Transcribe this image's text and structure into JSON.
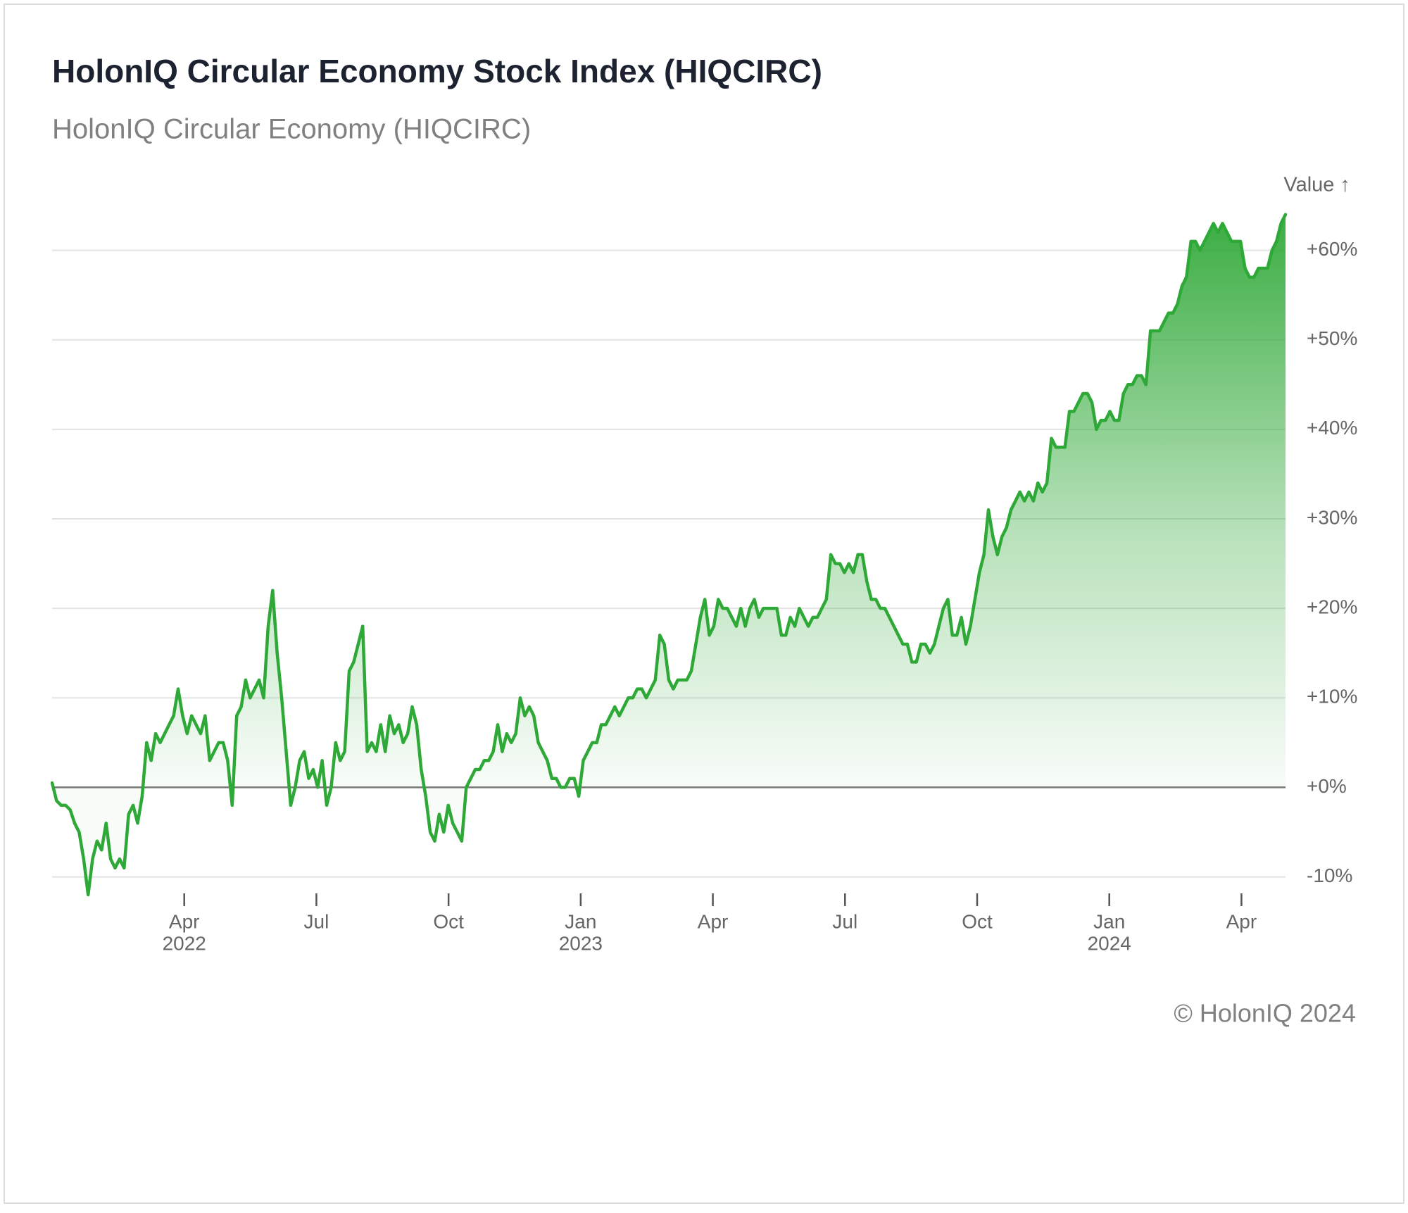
{
  "chart_data": {
    "type": "area",
    "title": "HolonIQ Circular Economy Stock Index (HIQCIRC)",
    "subtitle": "HolonIQ Circular Economy (HIQCIRC)",
    "y_label": "Value ↑",
    "footer": "© HolonIQ 2024",
    "color": "#2ea836",
    "xlim": [
      "2022-01",
      "2024-05"
    ],
    "xticks": [
      {
        "value": "2022-04",
        "label": "Apr",
        "year": "2022"
      },
      {
        "value": "2022-07",
        "label": "Jul"
      },
      {
        "value": "2022-10",
        "label": "Oct"
      },
      {
        "value": "2023-01",
        "label": "Jan",
        "year": "2023"
      },
      {
        "value": "2023-04",
        "label": "Apr"
      },
      {
        "value": "2023-07",
        "label": "Jul"
      },
      {
        "value": "2023-10",
        "label": "Oct"
      },
      {
        "value": "2024-01",
        "label": "Jan",
        "year": "2024"
      },
      {
        "value": "2024-04",
        "label": "Apr"
      }
    ],
    "ylim": [
      -12,
      65
    ],
    "yticks": [
      {
        "value": -10,
        "label": "-10%"
      },
      {
        "value": 0,
        "label": "+0%"
      },
      {
        "value": 10,
        "label": "+10%"
      },
      {
        "value": 20,
        "label": "+20%"
      },
      {
        "value": 30,
        "label": "+30%"
      },
      {
        "value": 40,
        "label": "+40%"
      },
      {
        "value": 50,
        "label": "+50%"
      },
      {
        "value": 60,
        "label": "+60%"
      }
    ],
    "values": [
      0.5,
      -1.5,
      -2,
      -2,
      -2.5,
      -4,
      -5,
      -8,
      -12,
      -8,
      -6,
      -7,
      -4,
      -8,
      -9,
      -8,
      -9,
      -3,
      -2,
      -4,
      -1,
      5,
      3,
      6,
      5,
      6,
      7,
      8,
      11,
      8,
      6,
      8,
      7,
      6,
      8,
      3,
      4,
      5,
      5,
      3,
      -2,
      8,
      9,
      12,
      10,
      11,
      12,
      10,
      18,
      22,
      15,
      10,
      4,
      -2,
      0,
      3,
      4,
      1,
      2,
      0,
      3,
      -2,
      0,
      5,
      3,
      4,
      13,
      14,
      16,
      18,
      4,
      5,
      4,
      7,
      4,
      8,
      6,
      7,
      5,
      6,
      9,
      7,
      2,
      -1,
      -5,
      -6,
      -3,
      -5,
      -2,
      -4,
      -5,
      -6,
      0,
      1,
      2,
      2,
      3,
      3,
      4,
      7,
      4,
      6,
      5,
      6,
      10,
      8,
      9,
      8,
      5,
      4,
      3,
      1,
      1,
      0,
      0,
      1,
      1,
      -1,
      3,
      4,
      5,
      5,
      7,
      7,
      8,
      9,
      8,
      9,
      10,
      10,
      11,
      11,
      10,
      11,
      12,
      17,
      16,
      12,
      11,
      12,
      12,
      12,
      13,
      16,
      19,
      21,
      17,
      18,
      21,
      20,
      20,
      19,
      18,
      20,
      18,
      20,
      21,
      19,
      20,
      20,
      20,
      20,
      17,
      17,
      19,
      18,
      20,
      19,
      18,
      19,
      19,
      20,
      21,
      26,
      25,
      25,
      24,
      25,
      24,
      26,
      26,
      23,
      21,
      21,
      20,
      20,
      19,
      18,
      17,
      16,
      16,
      14,
      14,
      16,
      16,
      15,
      16,
      18,
      20,
      21,
      17,
      17,
      19,
      16,
      18,
      21,
      24,
      26,
      31,
      28,
      26,
      28,
      29,
      31,
      32,
      33,
      32,
      33,
      32,
      34,
      33,
      34,
      39,
      38,
      38,
      38,
      42,
      42,
      43,
      44,
      44,
      43,
      40,
      41,
      41,
      42,
      41,
      41,
      44,
      45,
      45,
      46,
      46,
      45,
      51,
      51,
      51,
      52,
      53,
      53,
      54,
      56,
      57,
      61,
      61,
      60,
      61,
      62,
      63,
      62,
      63,
      62,
      61,
      61,
      61,
      58,
      57,
      57,
      58,
      58,
      58,
      60,
      61,
      63,
      64
    ]
  }
}
